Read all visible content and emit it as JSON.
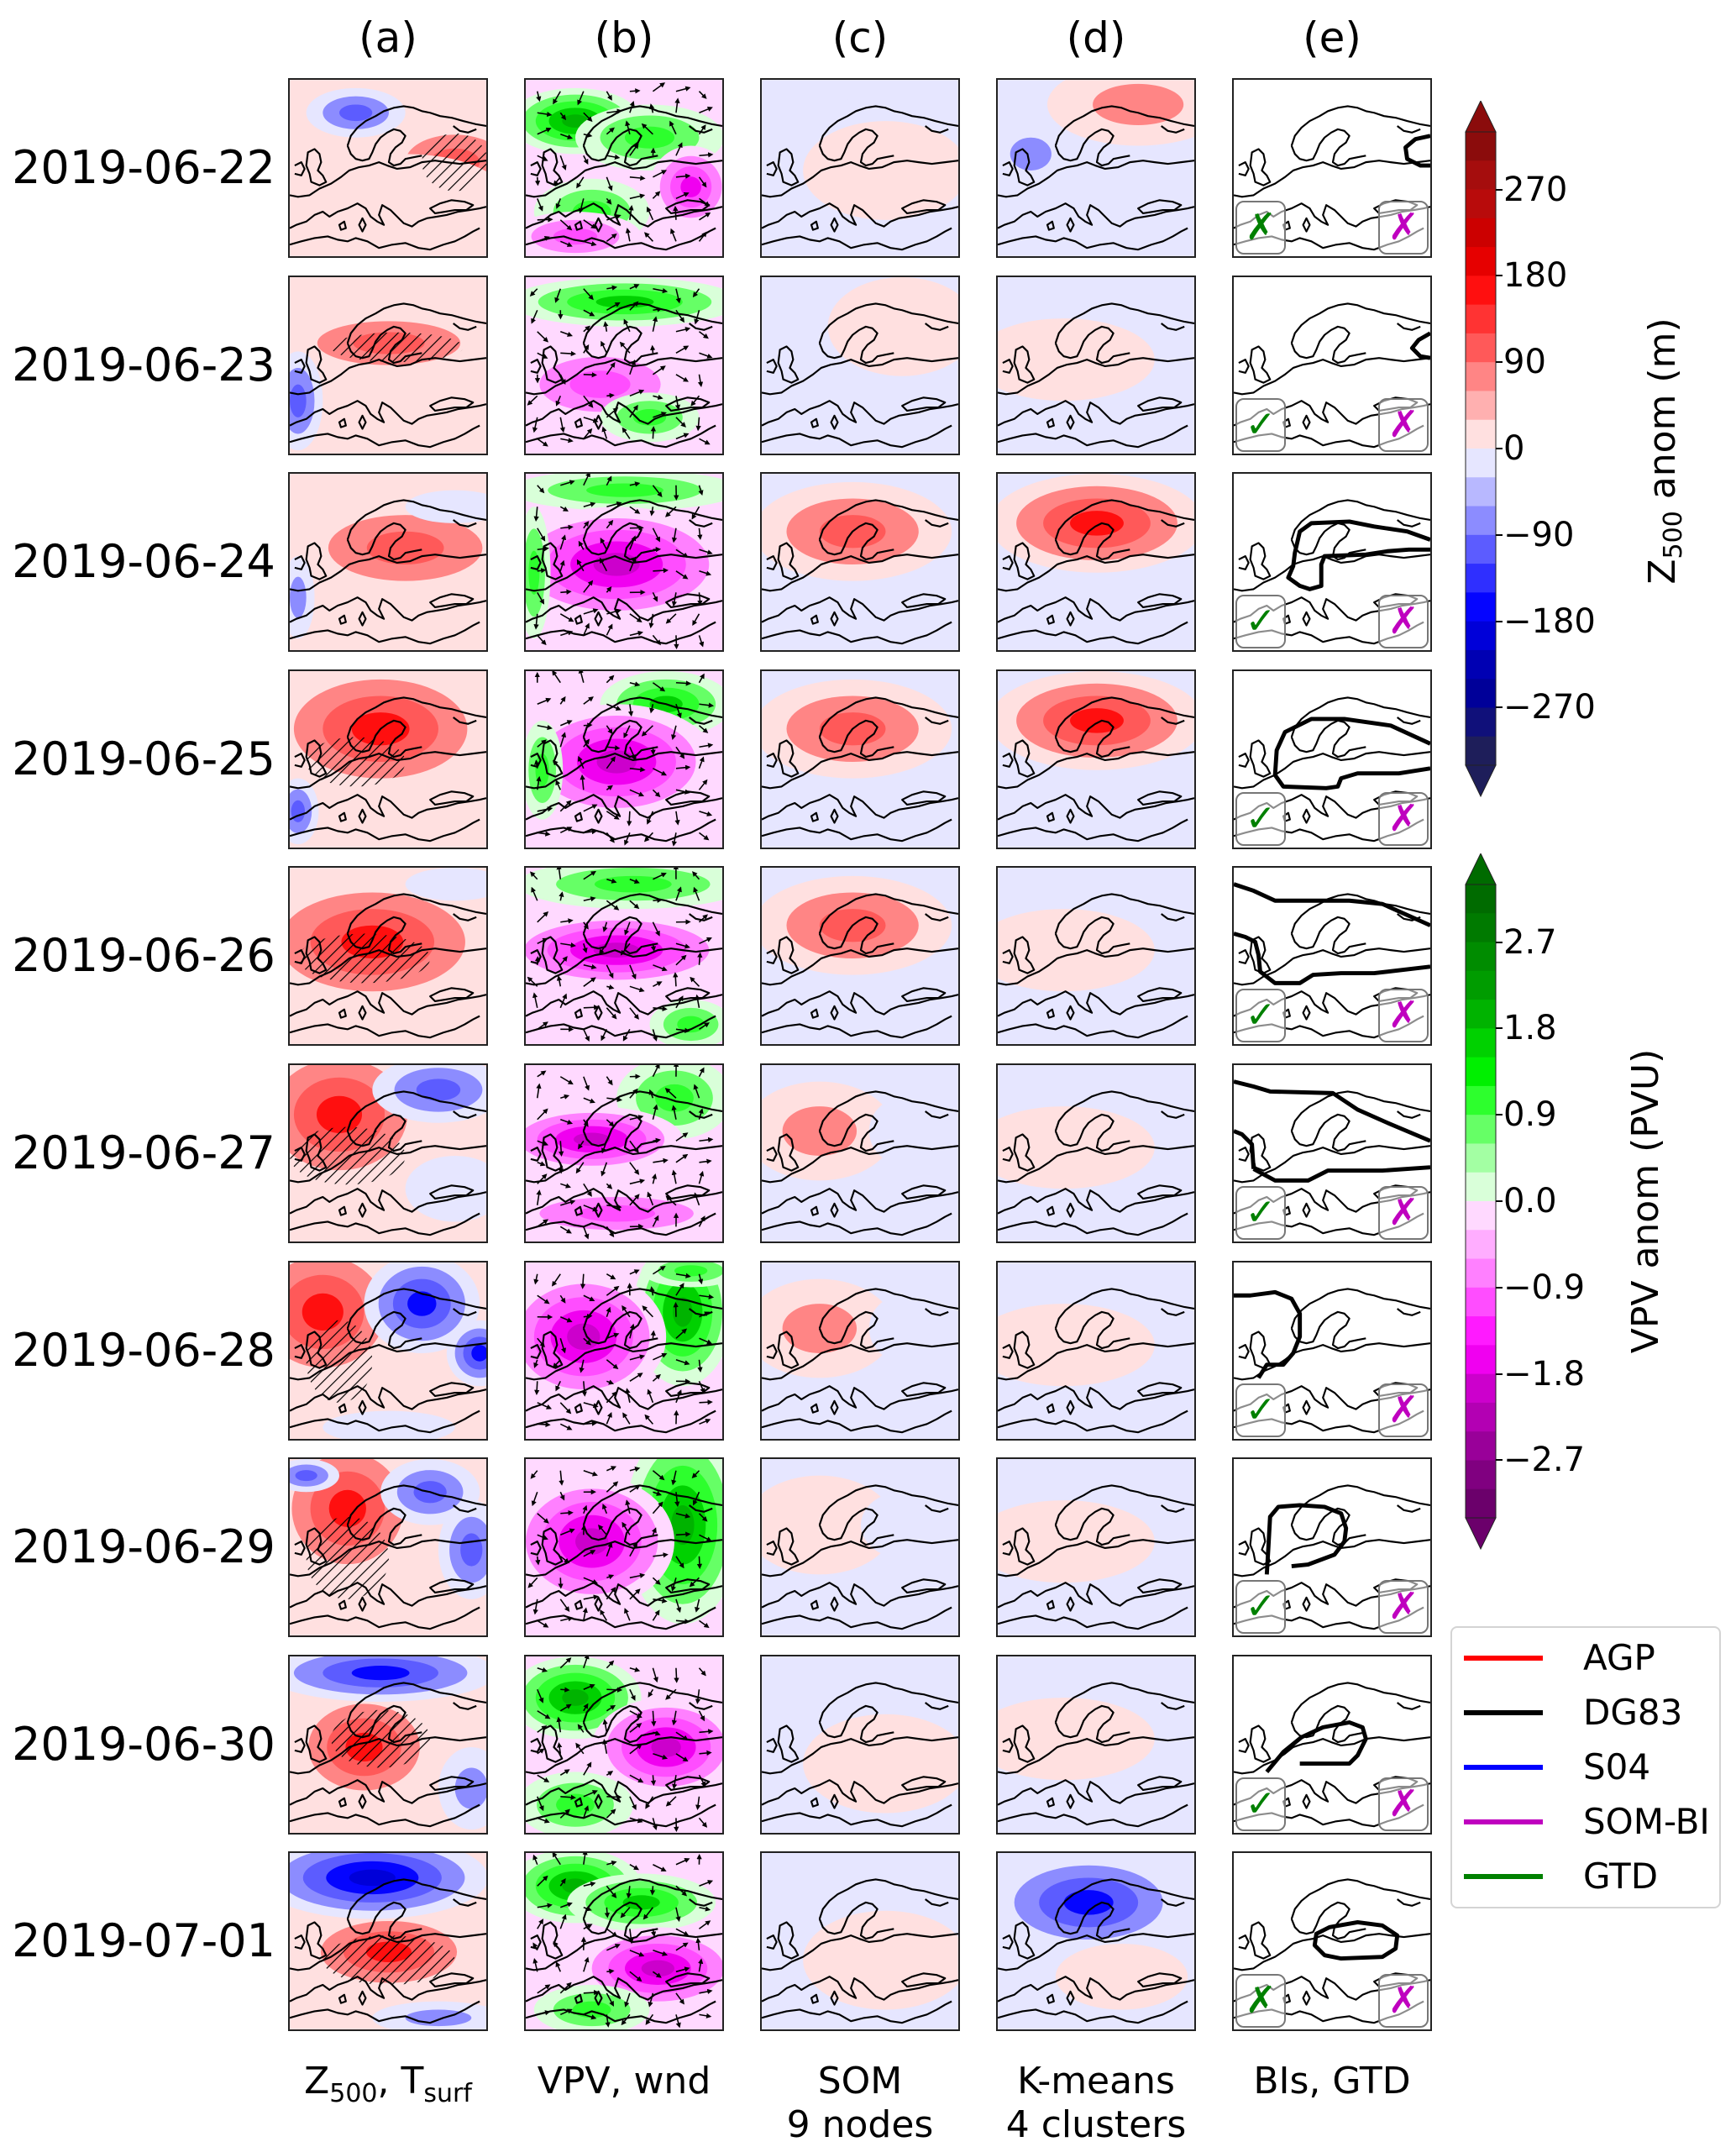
{
  "columns": [
    {
      "id": "a",
      "header": "(a)",
      "footer_main": "Z",
      "footer_sub1": "500",
      "footer_mid": ", T",
      "footer_sub2": "surf"
    },
    {
      "id": "b",
      "header": "(b)",
      "footer_line1": "VPV, wnd"
    },
    {
      "id": "c",
      "header": "(c)",
      "footer_line1": "SOM",
      "footer_line2": "9 nodes"
    },
    {
      "id": "d",
      "header": "(d)",
      "footer_line1": "K-means",
      "footer_line2": "4 clusters"
    },
    {
      "id": "e",
      "header": "(e)",
      "footer_line1": "BIs, GTD"
    }
  ],
  "rows": [
    {
      "date": "2019-06-22",
      "gtd_mark": "✗",
      "gtd_ok": false,
      "sombi_mark": "✗",
      "sombi_ok": false
    },
    {
      "date": "2019-06-23",
      "gtd_mark": "✓",
      "gtd_ok": true,
      "sombi_mark": "✗",
      "sombi_ok": false
    },
    {
      "date": "2019-06-24",
      "gtd_mark": "✓",
      "gtd_ok": true,
      "sombi_mark": "✗",
      "sombi_ok": false
    },
    {
      "date": "2019-06-25",
      "gtd_mark": "✓",
      "gtd_ok": true,
      "sombi_mark": "✗",
      "sombi_ok": false
    },
    {
      "date": "2019-06-26",
      "gtd_mark": "✓",
      "gtd_ok": true,
      "sombi_mark": "✗",
      "sombi_ok": false
    },
    {
      "date": "2019-06-27",
      "gtd_mark": "✓",
      "gtd_ok": true,
      "sombi_mark": "✗",
      "sombi_ok": false
    },
    {
      "date": "2019-06-28",
      "gtd_mark": "✓",
      "gtd_ok": true,
      "sombi_mark": "✗",
      "sombi_ok": false
    },
    {
      "date": "2019-06-29",
      "gtd_mark": "✓",
      "gtd_ok": true,
      "sombi_mark": "✗",
      "sombi_ok": false
    },
    {
      "date": "2019-06-30",
      "gtd_mark": "✓",
      "gtd_ok": true,
      "sombi_mark": "✗",
      "sombi_ok": false
    },
    {
      "date": "2019-07-01",
      "gtd_mark": "✗",
      "gtd_ok": false,
      "sombi_mark": "✗",
      "sombi_ok": false
    }
  ],
  "colorbar_z500": {
    "title_main": "Z",
    "title_sub": "500",
    "title_rest": " anom (m)",
    "ticks": [
      "270",
      "180",
      "90",
      "0",
      "−90",
      "−180",
      "−270"
    ],
    "tick_values": [
      270,
      180,
      90,
      0,
      -90,
      -180,
      -270
    ],
    "range": [
      -330,
      330
    ],
    "colors_top_to_bottom": [
      "#8b0c0c",
      "#a50d0d",
      "#b80b0b",
      "#cc0000",
      "#e60000",
      "#ff0f0f",
      "#ff3333",
      "#ff5959",
      "#ff8585",
      "#ffb0b0",
      "#ffe0e0",
      "#e6e6ff",
      "#b8b8ff",
      "#8c8cff",
      "#5c5cff",
      "#2f2fff",
      "#0505ff",
      "#0000d9",
      "#0000b3",
      "#000099",
      "#10107a",
      "#1e1e5a"
    ]
  },
  "colorbar_vpv": {
    "title": "VPV anom (PVU)",
    "ticks": [
      "2.7",
      "1.8",
      "0.9",
      "0.0",
      "−0.9",
      "−1.8",
      "−2.7"
    ],
    "tick_values": [
      2.7,
      1.8,
      0.9,
      0.0,
      -0.9,
      -1.8,
      -2.7
    ],
    "range": [
      -3.3,
      3.3
    ],
    "colors_top_to_bottom": [
      "#006b00",
      "#007a00",
      "#008c00",
      "#009c00",
      "#00b300",
      "#00d100",
      "#00f000",
      "#2dff2d",
      "#66ff66",
      "#a3ffa3",
      "#d9ffd9",
      "#ffd9ff",
      "#ffadff",
      "#ff80ff",
      "#ff4dff",
      "#ff1aff",
      "#f000f0",
      "#cc00cc",
      "#b300b3",
      "#990099",
      "#800080",
      "#6b006b"
    ]
  },
  "legend": [
    {
      "label": "AGP",
      "color": "#ff0000"
    },
    {
      "label": "DG83",
      "color": "#000000"
    },
    {
      "label": "S04",
      "color": "#0000ff"
    },
    {
      "label": "SOM-BI",
      "color": "#bf00bf"
    },
    {
      "label": "GTD",
      "color": "#008000"
    }
  ],
  "mark_colors": {
    "gtd": "#008000",
    "sombi": "#bf00bf"
  }
}
